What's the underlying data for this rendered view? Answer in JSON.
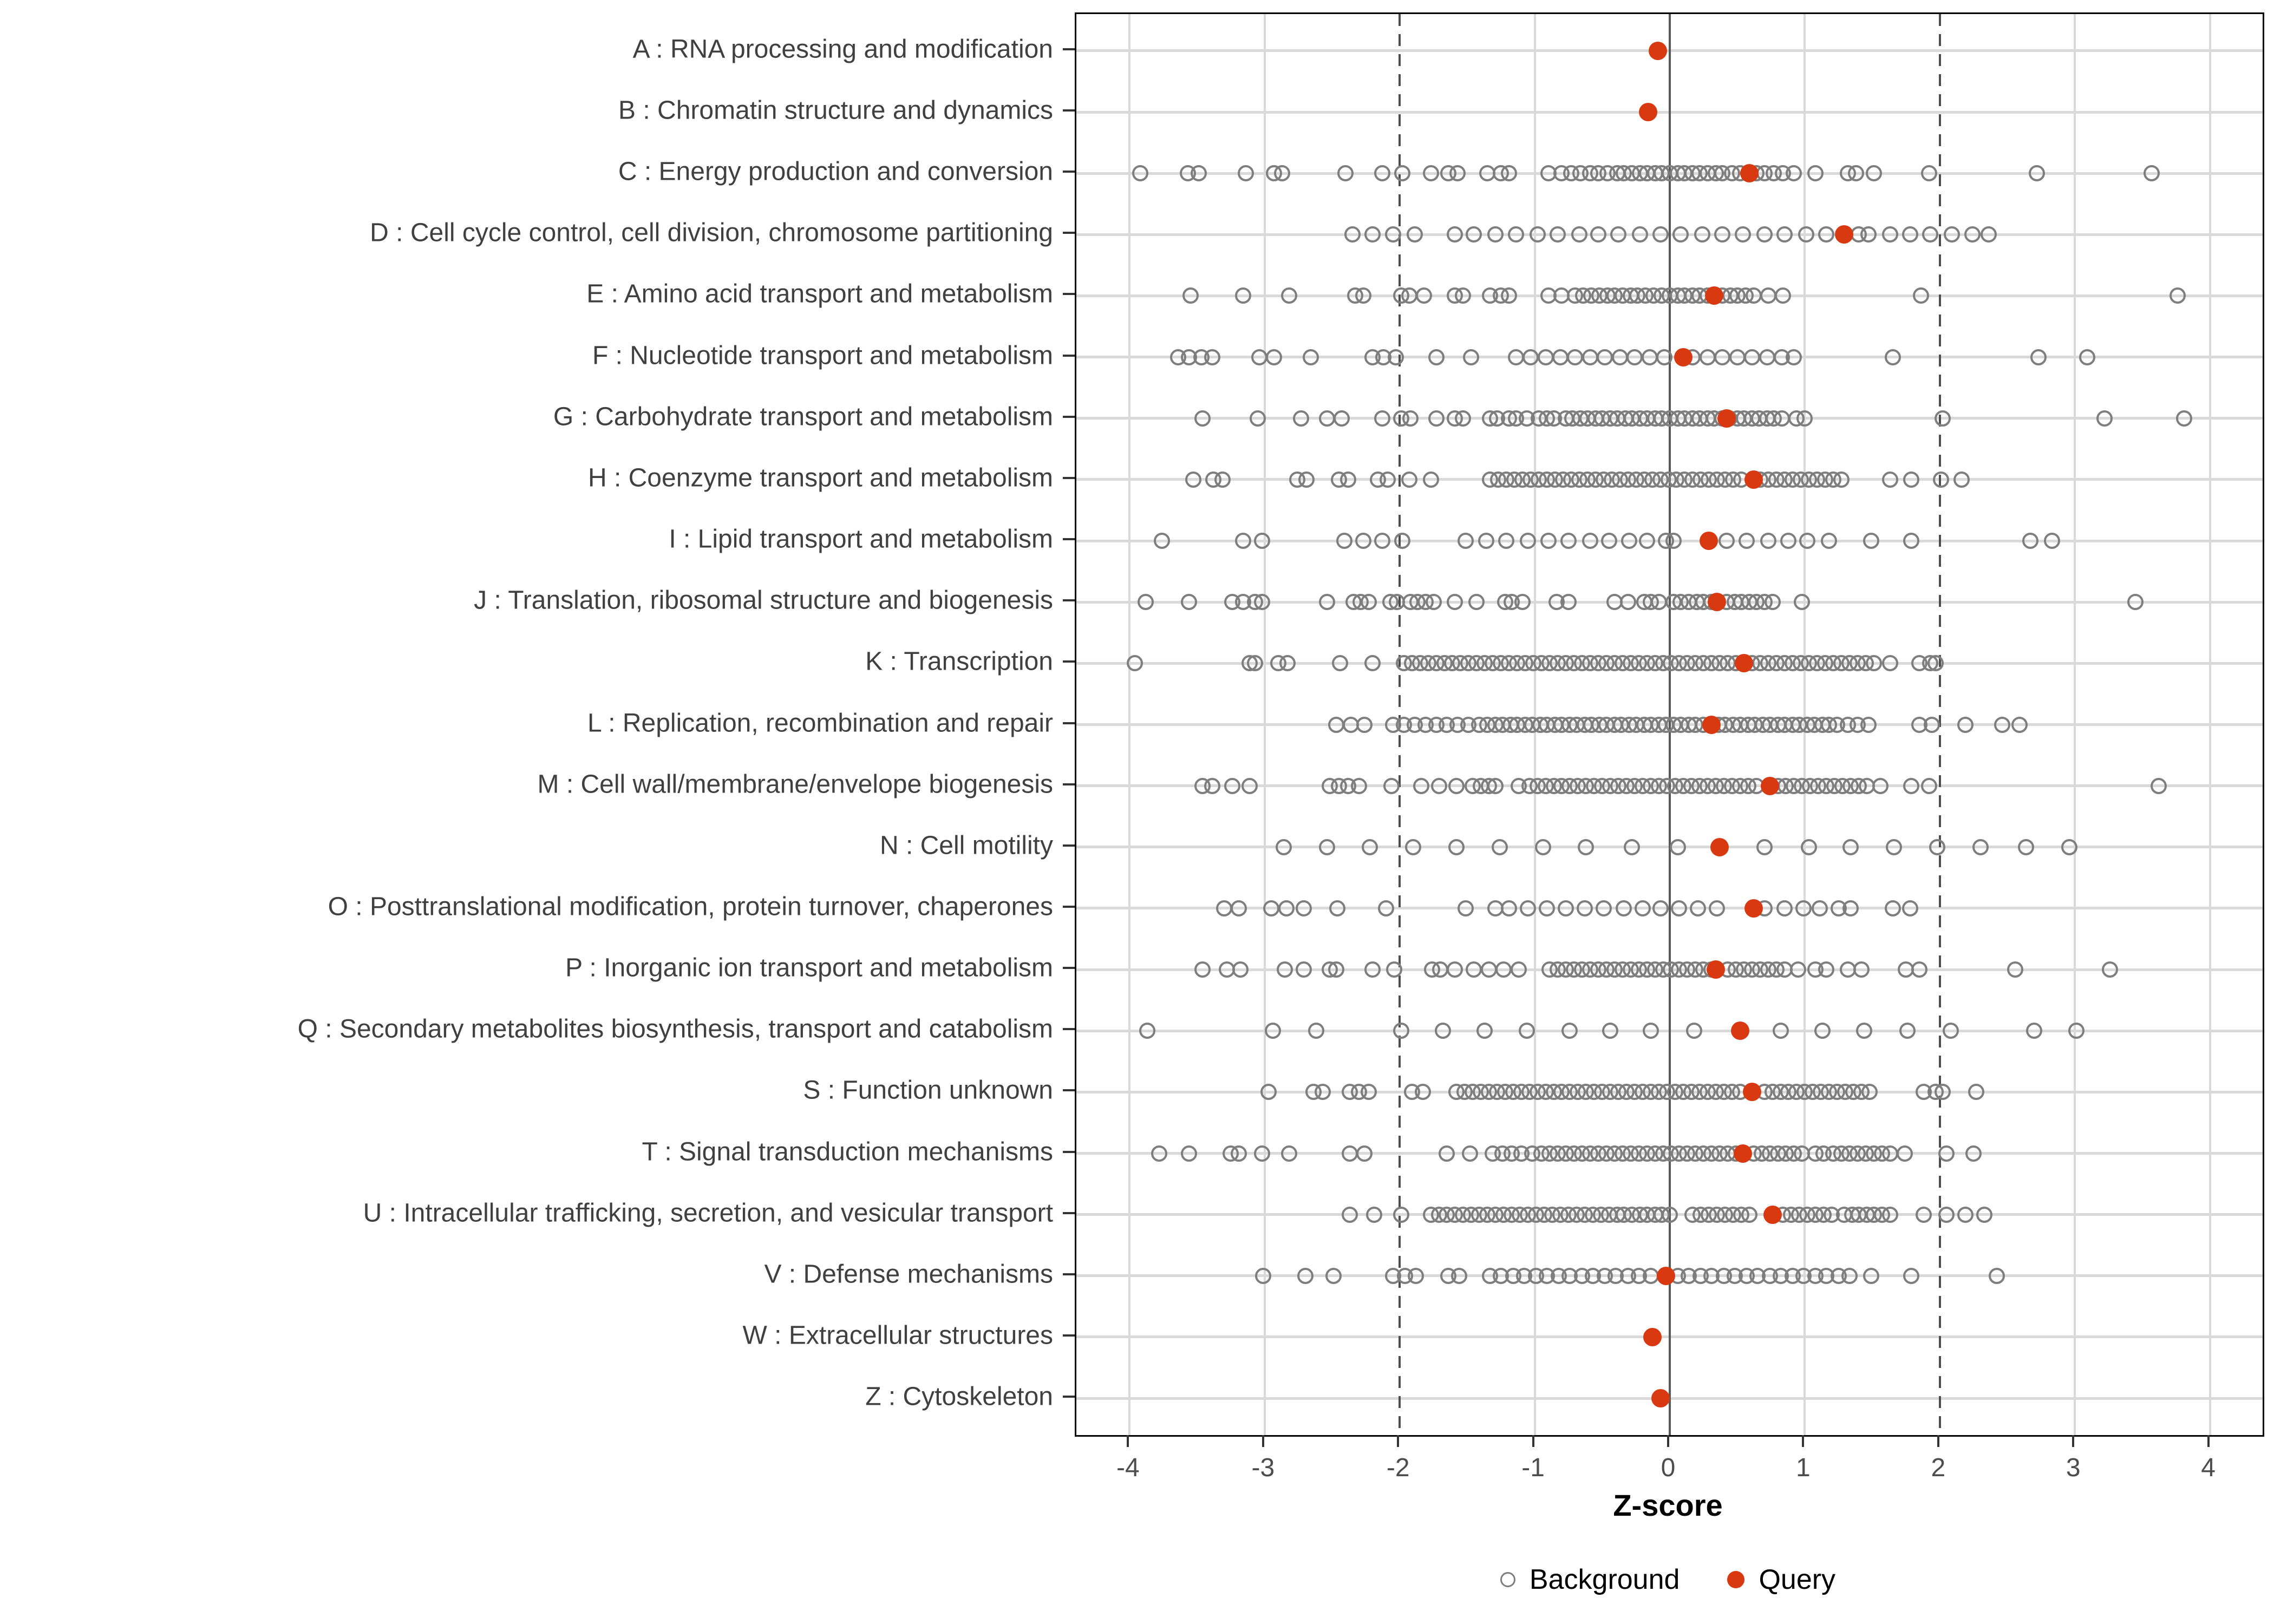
{
  "chart_data": {
    "type": "scatter",
    "title": "",
    "xlabel": "Z-score",
    "ylabel": "",
    "x_ticks": [
      -4,
      -3,
      -2,
      -1,
      0,
      1,
      2,
      3,
      4
    ],
    "xlim": [
      -4.39,
      4.39
    ],
    "grid": "light vertical line per integer tick; light horizontal line per category row",
    "reference_lines": {
      "solid_zero": 0,
      "dashed": [
        -2,
        2
      ]
    },
    "legend": {
      "position": "bottom-center",
      "background_label": "Background",
      "query_label": "Query"
    },
    "colors": {
      "query": "#D93910",
      "background_stroke": "#7E7E7E",
      "grid": "#D9D9D9",
      "zero_line": "#595959",
      "dashed_line": "#4D4D4D",
      "tick_text": "#4D4D4D",
      "label_text": "#404040",
      "panel_border": "#000000"
    },
    "categories": [
      {
        "code": "A",
        "label": "A : RNA processing and modification",
        "query": -0.09,
        "background": []
      },
      {
        "code": "B",
        "label": "B : Chromatin structure and dynamics",
        "query": -0.16,
        "background": []
      },
      {
        "code": "C",
        "label": "C : Energy production and conversion",
        "query": 0.59,
        "background": [
          -3.92,
          -3.57,
          -3.49,
          -3.14,
          -2.93,
          -2.87,
          -2.4,
          -2.13,
          -1.98,
          -1.77,
          -1.64,
          -1.57,
          -1.35,
          -1.25,
          -1.19,
          -0.9,
          -0.8,
          -0.73,
          -0.66,
          -0.59,
          -0.53,
          -0.46,
          -0.39,
          -0.34,
          -0.28,
          -0.22,
          -0.17,
          -0.11,
          -0.06,
          0.0,
          0.06,
          0.11,
          0.17,
          0.22,
          0.28,
          0.34,
          0.39,
          0.46,
          0.52,
          0.64,
          0.7,
          0.77,
          0.84,
          0.92,
          1.08,
          1.32,
          1.38,
          1.51,
          1.92,
          2.72,
          3.57
        ]
      },
      {
        "code": "D",
        "label": "D : Cell cycle control, cell division, chromosome partitioning",
        "query": 1.29,
        "background": [
          -2.35,
          -2.2,
          -2.05,
          -1.89,
          -1.59,
          -1.45,
          -1.29,
          -1.14,
          -0.98,
          -0.83,
          -0.67,
          -0.53,
          -0.38,
          -0.22,
          -0.07,
          0.08,
          0.24,
          0.39,
          0.54,
          0.7,
          0.85,
          1.01,
          1.16,
          1.4,
          1.47,
          1.63,
          1.78,
          1.93,
          2.09,
          2.24,
          2.36
        ]
      },
      {
        "code": "E",
        "label": "E : Amino acid transport and metabolism",
        "query": 0.33,
        "background": [
          -3.55,
          -3.16,
          -2.82,
          -2.33,
          -2.27,
          -1.99,
          -1.93,
          -1.82,
          -1.59,
          -1.53,
          -1.33,
          -1.25,
          -1.19,
          -0.9,
          -0.8,
          -0.7,
          -0.64,
          -0.58,
          -0.52,
          -0.46,
          -0.41,
          -0.35,
          -0.29,
          -0.24,
          -0.18,
          -0.12,
          -0.06,
          0.0,
          0.06,
          0.11,
          0.17,
          0.22,
          0.28,
          0.39,
          0.45,
          0.5,
          0.56,
          0.62,
          0.73,
          0.84,
          1.86,
          3.76
        ]
      },
      {
        "code": "F",
        "label": "F : Nucleotide transport and metabolism",
        "query": 0.1,
        "background": [
          -3.64,
          -3.56,
          -3.47,
          -3.39,
          -3.04,
          -2.93,
          -2.66,
          -2.2,
          -2.12,
          -2.03,
          -1.73,
          -1.47,
          -1.14,
          -1.03,
          -0.92,
          -0.81,
          -0.7,
          -0.59,
          -0.48,
          -0.37,
          -0.26,
          -0.15,
          -0.04,
          0.17,
          0.28,
          0.39,
          0.5,
          0.61,
          0.72,
          0.83,
          0.92,
          1.65,
          2.73,
          3.09
        ]
      },
      {
        "code": "G",
        "label": "G : Carbohydrate transport and metabolism",
        "query": 0.42,
        "background": [
          -3.46,
          -3.05,
          -2.73,
          -2.54,
          -2.43,
          -2.13,
          -1.99,
          -1.92,
          -1.73,
          -1.59,
          -1.53,
          -1.33,
          -1.28,
          -1.19,
          -1.14,
          -1.06,
          -0.97,
          -0.91,
          -0.86,
          -0.77,
          -0.72,
          -0.66,
          -0.61,
          -0.55,
          -0.5,
          -0.44,
          -0.39,
          -0.33,
          -0.28,
          -0.22,
          -0.17,
          -0.11,
          -0.06,
          0.0,
          0.06,
          0.11,
          0.17,
          0.22,
          0.28,
          0.33,
          0.39,
          0.44,
          0.5,
          0.55,
          0.61,
          0.66,
          0.72,
          0.77,
          0.83,
          0.94,
          1.0,
          2.02,
          3.22,
          3.81
        ]
      },
      {
        "code": "H",
        "label": "H : Coenzyme transport and metabolism",
        "query": 0.62,
        "background": [
          -3.53,
          -3.38,
          -3.31,
          -2.76,
          -2.69,
          -2.45,
          -2.38,
          -2.16,
          -2.09,
          -1.93,
          -1.77,
          -1.33,
          -1.27,
          -1.21,
          -1.15,
          -1.09,
          -1.03,
          -0.97,
          -0.91,
          -0.85,
          -0.79,
          -0.73,
          -0.67,
          -0.61,
          -0.55,
          -0.49,
          -0.43,
          -0.37,
          -0.31,
          -0.25,
          -0.19,
          -0.13,
          -0.07,
          -0.01,
          0.05,
          0.11,
          0.17,
          0.23,
          0.29,
          0.35,
          0.41,
          0.47,
          0.53,
          0.67,
          0.73,
          0.79,
          0.85,
          0.91,
          0.97,
          1.03,
          1.09,
          1.15,
          1.21,
          1.27,
          1.63,
          1.79,
          2.01,
          2.16
        ]
      },
      {
        "code": "I",
        "label": "I : Lipid transport and metabolism",
        "query": 0.29,
        "background": [
          -3.76,
          -3.16,
          -3.02,
          -2.41,
          -2.27,
          -2.13,
          -1.98,
          -1.51,
          -1.36,
          -1.21,
          -1.05,
          -0.9,
          -0.75,
          -0.59,
          -0.45,
          -0.3,
          -0.17,
          -0.03,
          0.03,
          0.42,
          0.57,
          0.73,
          0.88,
          1.02,
          1.18,
          1.49,
          1.79,
          2.67,
          2.83
        ]
      },
      {
        "code": "J",
        "label": "J : Translation, ribosomal structure and biogenesis",
        "query": 0.35,
        "background": [
          -3.88,
          -3.56,
          -3.24,
          -3.16,
          -3.07,
          -3.02,
          -2.54,
          -2.34,
          -2.29,
          -2.23,
          -2.07,
          -2.02,
          -1.92,
          -1.87,
          -1.81,
          -1.75,
          -1.59,
          -1.43,
          -1.22,
          -1.17,
          -1.09,
          -0.84,
          -0.75,
          -0.41,
          -0.31,
          -0.19,
          -0.14,
          -0.08,
          0.03,
          0.08,
          0.14,
          0.2,
          0.25,
          0.31,
          0.42,
          0.48,
          0.53,
          0.59,
          0.64,
          0.7,
          0.76,
          0.98,
          3.45
        ]
      },
      {
        "code": "K",
        "label": "K : Transcription",
        "query": 0.55,
        "background": [
          -3.96,
          -3.11,
          -3.07,
          -2.9,
          -2.83,
          -2.44,
          -2.2,
          -1.97,
          -1.91,
          -1.85,
          -1.79,
          -1.73,
          -1.67,
          -1.61,
          -1.55,
          -1.49,
          -1.43,
          -1.37,
          -1.31,
          -1.25,
          -1.19,
          -1.13,
          -1.07,
          -1.01,
          -0.95,
          -0.89,
          -0.83,
          -0.77,
          -0.71,
          -0.65,
          -0.59,
          -0.53,
          -0.47,
          -0.41,
          -0.35,
          -0.29,
          -0.23,
          -0.17,
          -0.11,
          -0.05,
          0.01,
          0.07,
          0.13,
          0.19,
          0.25,
          0.31,
          0.37,
          0.43,
          0.49,
          0.61,
          0.67,
          0.73,
          0.79,
          0.85,
          0.91,
          0.97,
          1.03,
          1.09,
          1.15,
          1.21,
          1.27,
          1.33,
          1.39,
          1.45,
          1.51,
          1.63,
          1.85,
          1.93,
          1.97
        ]
      },
      {
        "code": "L",
        "label": "L : Replication, recombination and repair",
        "query": 0.31,
        "background": [
          -2.47,
          -2.36,
          -2.26,
          -2.05,
          -1.97,
          -1.89,
          -1.81,
          -1.73,
          -1.65,
          -1.57,
          -1.49,
          -1.41,
          -1.35,
          -1.29,
          -1.24,
          -1.18,
          -1.13,
          -1.07,
          -1.02,
          -0.96,
          -0.91,
          -0.85,
          -0.8,
          -0.74,
          -0.69,
          -0.63,
          -0.58,
          -0.52,
          -0.47,
          -0.41,
          -0.36,
          -0.3,
          -0.25,
          -0.19,
          -0.14,
          -0.08,
          -0.03,
          0.03,
          0.08,
          0.14,
          0.19,
          0.25,
          0.36,
          0.41,
          0.47,
          0.52,
          0.58,
          0.63,
          0.69,
          0.74,
          0.8,
          0.85,
          0.91,
          0.96,
          1.02,
          1.07,
          1.13,
          1.18,
          1.24,
          1.32,
          1.39,
          1.47,
          1.85,
          1.94,
          2.19,
          2.46,
          2.59
        ]
      },
      {
        "code": "M",
        "label": "M : Cell wall/membrane/envelope biogenesis",
        "query": 0.74,
        "background": [
          -3.46,
          -3.39,
          -3.24,
          -3.11,
          -2.52,
          -2.45,
          -2.38,
          -2.3,
          -2.06,
          -1.84,
          -1.71,
          -1.58,
          -1.46,
          -1.4,
          -1.34,
          -1.29,
          -1.12,
          -1.04,
          -0.98,
          -0.92,
          -0.86,
          -0.8,
          -0.74,
          -0.68,
          -0.62,
          -0.56,
          -0.5,
          -0.44,
          -0.38,
          -0.32,
          -0.26,
          -0.2,
          -0.14,
          -0.08,
          -0.02,
          0.04,
          0.1,
          0.16,
          0.22,
          0.28,
          0.34,
          0.4,
          0.46,
          0.52,
          0.58,
          0.64,
          0.8,
          0.86,
          0.92,
          0.98,
          1.04,
          1.1,
          1.16,
          1.22,
          1.28,
          1.34,
          1.4,
          1.46,
          1.56,
          1.79,
          1.92,
          3.62
        ]
      },
      {
        "code": "N",
        "label": "N : Cell motility",
        "query": 0.37,
        "background": [
          -2.86,
          -2.54,
          -2.22,
          -1.9,
          -1.58,
          -1.26,
          -0.94,
          -0.62,
          -0.28,
          0.06,
          0.7,
          1.03,
          1.34,
          1.66,
          1.98,
          2.3,
          2.64,
          2.96
        ]
      },
      {
        "code": "O",
        "label": "O : Posttranslational modification, protein turnover, chaperones",
        "query": 0.62,
        "background": [
          -3.3,
          -3.19,
          -2.95,
          -2.84,
          -2.71,
          -2.46,
          -2.1,
          -1.51,
          -1.29,
          -1.19,
          -1.05,
          -0.91,
          -0.77,
          -0.63,
          -0.49,
          -0.34,
          -0.2,
          -0.07,
          0.07,
          0.21,
          0.35,
          0.7,
          0.85,
          0.99,
          1.11,
          1.25,
          1.34,
          1.65,
          1.78
        ]
      },
      {
        "code": "P",
        "label": "P : Inorganic ion transport and metabolism",
        "query": 0.34,
        "background": [
          -3.46,
          -3.28,
          -3.18,
          -2.85,
          -2.71,
          -2.52,
          -2.47,
          -2.2,
          -2.04,
          -1.76,
          -1.7,
          -1.59,
          -1.45,
          -1.34,
          -1.23,
          -1.12,
          -0.89,
          -0.83,
          -0.77,
          -0.71,
          -0.65,
          -0.59,
          -0.53,
          -0.47,
          -0.41,
          -0.35,
          -0.29,
          -0.23,
          -0.17,
          -0.11,
          -0.05,
          0.01,
          0.07,
          0.13,
          0.19,
          0.25,
          0.31,
          0.43,
          0.49,
          0.55,
          0.61,
          0.67,
          0.73,
          0.79,
          0.85,
          0.95,
          1.08,
          1.16,
          1.32,
          1.42,
          1.75,
          1.85,
          2.56,
          3.26
        ]
      },
      {
        "code": "Q",
        "label": "Q : Secondary metabolites biosynthesis, transport and catabolism",
        "query": 0.52,
        "background": [
          -3.87,
          -2.94,
          -2.62,
          -1.99,
          -1.68,
          -1.37,
          -1.06,
          -0.74,
          -0.44,
          -0.14,
          0.18,
          0.82,
          1.13,
          1.44,
          1.76,
          2.08,
          2.7,
          3.01
        ]
      },
      {
        "code": "S",
        "label": "S : Function unknown",
        "query": 0.61,
        "background": [
          -2.97,
          -2.64,
          -2.57,
          -2.37,
          -2.3,
          -2.23,
          -1.91,
          -1.83,
          -1.58,
          -1.52,
          -1.46,
          -1.4,
          -1.34,
          -1.28,
          -1.22,
          -1.16,
          -1.1,
          -1.04,
          -0.98,
          -0.92,
          -0.86,
          -0.8,
          -0.74,
          -0.68,
          -0.62,
          -0.56,
          -0.5,
          -0.44,
          -0.38,
          -0.32,
          -0.26,
          -0.2,
          -0.14,
          -0.08,
          -0.02,
          0.04,
          0.1,
          0.16,
          0.22,
          0.28,
          0.34,
          0.4,
          0.46,
          0.52,
          0.7,
          0.76,
          0.82,
          0.88,
          0.94,
          1.0,
          1.06,
          1.12,
          1.18,
          1.24,
          1.3,
          1.36,
          1.42,
          1.48,
          1.88,
          1.97,
          2.02,
          2.27
        ]
      },
      {
        "code": "T",
        "label": "T : Signal transduction mechanisms",
        "query": 0.54,
        "background": [
          -3.78,
          -3.56,
          -3.25,
          -3.19,
          -3.02,
          -2.82,
          -2.37,
          -2.26,
          -1.65,
          -1.48,
          -1.31,
          -1.24,
          -1.17,
          -1.1,
          -1.02,
          -0.95,
          -0.89,
          -0.83,
          -0.77,
          -0.71,
          -0.65,
          -0.59,
          -0.53,
          -0.47,
          -0.41,
          -0.35,
          -0.29,
          -0.23,
          -0.17,
          -0.11,
          -0.05,
          0.01,
          0.07,
          0.13,
          0.19,
          0.25,
          0.31,
          0.37,
          0.43,
          0.49,
          0.62,
          0.68,
          0.74,
          0.8,
          0.86,
          0.92,
          0.98,
          1.08,
          1.14,
          1.21,
          1.27,
          1.33,
          1.39,
          1.45,
          1.51,
          1.57,
          1.63,
          1.74,
          2.05,
          2.25
        ]
      },
      {
        "code": "U",
        "label": "U : Intracellular trafficking, secretion, and vesicular transport",
        "query": 0.76,
        "background": [
          -2.37,
          -2.19,
          -1.99,
          -1.77,
          -1.71,
          -1.65,
          -1.59,
          -1.53,
          -1.47,
          -1.41,
          -1.35,
          -1.29,
          -1.23,
          -1.17,
          -1.11,
          -1.05,
          -0.99,
          -0.93,
          -0.87,
          -0.81,
          -0.75,
          -0.69,
          -0.63,
          -0.57,
          -0.51,
          -0.45,
          -0.39,
          -0.34,
          -0.28,
          -0.22,
          -0.17,
          -0.11,
          -0.06,
          0.0,
          0.17,
          0.23,
          0.29,
          0.35,
          0.41,
          0.47,
          0.53,
          0.59,
          0.84,
          0.9,
          0.96,
          1.02,
          1.08,
          1.14,
          1.2,
          1.29,
          1.35,
          1.4,
          1.46,
          1.51,
          1.57,
          1.63,
          1.88,
          2.05,
          2.19,
          2.33
        ]
      },
      {
        "code": "V",
        "label": "V : Defense mechanisms",
        "query": -0.03,
        "background": [
          -3.01,
          -2.7,
          -2.49,
          -2.05,
          -1.96,
          -1.88,
          -1.64,
          -1.56,
          -1.33,
          -1.25,
          -1.16,
          -1.08,
          -0.99,
          -0.91,
          -0.82,
          -0.74,
          -0.65,
          -0.57,
          -0.48,
          -0.4,
          -0.31,
          -0.23,
          -0.14,
          0.06,
          0.14,
          0.23,
          0.31,
          0.4,
          0.48,
          0.57,
          0.65,
          0.74,
          0.82,
          0.91,
          0.99,
          1.08,
          1.16,
          1.25,
          1.33,
          1.49,
          1.79,
          2.42
        ]
      },
      {
        "code": "W",
        "label": "W : Extracellular structures",
        "query": -0.13,
        "background": []
      },
      {
        "code": "Z",
        "label": "Z : Cytoskeleton",
        "query": -0.07,
        "background": []
      }
    ]
  }
}
